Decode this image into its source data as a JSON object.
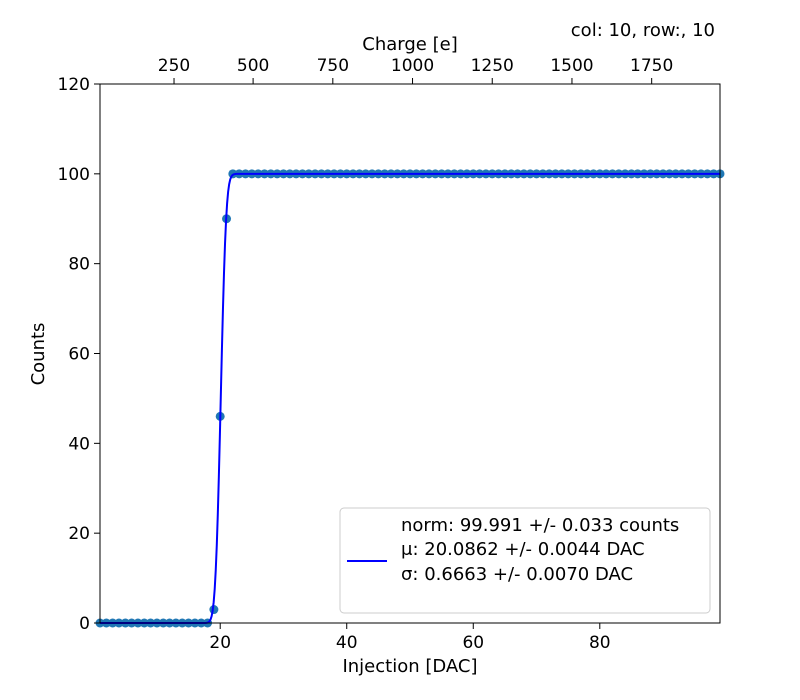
{
  "chart_data": {
    "type": "scatter",
    "title": "",
    "annotation": "col: 10, row:, 10",
    "xlabel": "Injection [DAC]",
    "ylabel": "Counts",
    "x2label": "Charge [e]",
    "xlim": [
      1,
      99
    ],
    "ylim": [
      0,
      120
    ],
    "x_ticks": [
      20,
      40,
      60,
      80
    ],
    "y_ticks": [
      0,
      20,
      40,
      60,
      80,
      100,
      120
    ],
    "x2_ticks": [
      {
        "label": "250",
        "at_dac": 12.7
      },
      {
        "label": "500",
        "at_dac": 25.2
      },
      {
        "label": "750",
        "at_dac": 37.8
      },
      {
        "label": "1000",
        "at_dac": 50.4
      },
      {
        "label": "1250",
        "at_dac": 63.0
      },
      {
        "label": "1500",
        "at_dac": 75.6
      },
      {
        "label": "1750",
        "at_dac": 88.2
      }
    ],
    "grid": false,
    "legend_position": "lower-right",
    "legend": {
      "lines": [
        "norm: 99.991 +/- 0.033 counts",
        "μ: 20.0862 +/- 0.0044 DAC",
        "σ: 0.6663 +/- 0.0070 DAC"
      ]
    },
    "series": [
      {
        "kind": "points",
        "color": "#1f77b4",
        "x": [
          1,
          2,
          3,
          4,
          5,
          6,
          7,
          8,
          9,
          10,
          11,
          12,
          13,
          14,
          15,
          16,
          17,
          18,
          19,
          20,
          21,
          22,
          23,
          24,
          25,
          26,
          27,
          28,
          29,
          30,
          31,
          32,
          33,
          34,
          35,
          36,
          37,
          38,
          39,
          40,
          41,
          42,
          43,
          44,
          45,
          46,
          47,
          48,
          49,
          50,
          51,
          52,
          53,
          54,
          55,
          56,
          57,
          58,
          59,
          60,
          61,
          62,
          63,
          64,
          65,
          66,
          67,
          68,
          69,
          70,
          71,
          72,
          73,
          74,
          75,
          76,
          77,
          78,
          79,
          80,
          81,
          82,
          83,
          84,
          85,
          86,
          87,
          88,
          89,
          90,
          91,
          92,
          93,
          94,
          95,
          96,
          97,
          98,
          99
        ],
        "y": [
          0,
          0,
          0,
          0,
          0,
          0,
          0,
          0,
          0,
          0,
          0,
          0,
          0,
          0,
          0,
          0,
          0,
          0,
          3,
          46,
          90,
          100,
          100,
          100,
          100,
          100,
          100,
          100,
          100,
          100,
          100,
          100,
          100,
          100,
          100,
          100,
          100,
          100,
          100,
          100,
          100,
          100,
          100,
          100,
          100,
          100,
          100,
          100,
          100,
          100,
          100,
          100,
          100,
          100,
          100,
          100,
          100,
          100,
          100,
          100,
          100,
          100,
          100,
          100,
          100,
          100,
          100,
          100,
          100,
          100,
          100,
          100,
          100,
          100,
          100,
          100,
          100,
          100,
          100,
          100,
          100,
          100,
          100,
          100,
          100,
          100,
          100,
          100,
          100,
          100,
          100,
          100,
          100,
          100,
          100,
          100,
          100,
          100,
          100
        ]
      },
      {
        "kind": "fit",
        "color": "#0000ff",
        "model": "erf",
        "norm": 99.991,
        "mu": 20.0862,
        "sigma": 0.6663
      }
    ]
  }
}
